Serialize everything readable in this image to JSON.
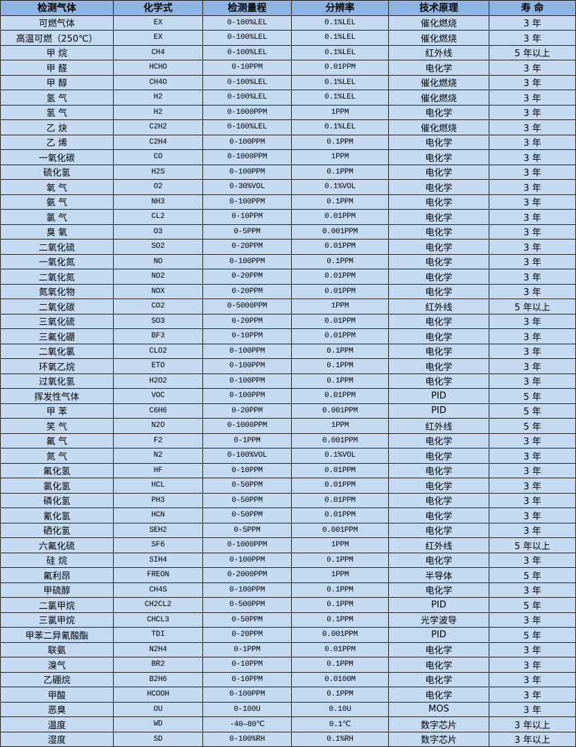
{
  "table": {
    "headers": [
      "检测气体",
      "化学式",
      "检测量程",
      "分辨率",
      "技术原理",
      "寿  命"
    ],
    "rows": [
      [
        "可燃气体",
        "EX",
        "0-100%LEL",
        "0.1%LEL",
        "催化燃烧",
        "3 年"
      ],
      [
        "高温可燃（250℃）",
        "EX",
        "0-100%LEL",
        "0.1%LEL",
        "催化燃烧",
        "3 年"
      ],
      [
        "甲  烷",
        "CH4",
        "0-100%LEL",
        "0.1%LEL",
        "红外线",
        "5 年以上"
      ],
      [
        "甲  醛",
        "HCHO",
        "0-10PPM",
        "0.01PPM",
        "电化学",
        "3 年"
      ],
      [
        "甲  醇",
        "CH4O",
        "0-100%LEL",
        "0.1%LEL",
        "催化燃烧",
        "3 年"
      ],
      [
        "氢  气",
        "H2",
        "0-100%LEL",
        "0.1%LEL",
        "催化燃烧",
        "3 年"
      ],
      [
        "氢  气",
        "H2",
        "0-1000PPM",
        "1PPM",
        "电化学",
        "3 年"
      ],
      [
        "乙  炔",
        "C2H2",
        "0-100%LEL",
        "0.1%LEL",
        "催化燃烧",
        "3 年"
      ],
      [
        "乙  烯",
        "C2H4",
        "0-100PPM",
        "0.1PPM",
        "电化学",
        "3 年"
      ],
      [
        "一氧化碳",
        "CO",
        "0-1000PPM",
        "1PPM",
        "电化学",
        "3 年"
      ],
      [
        "硫化氢",
        "H2S",
        "0-100PPM",
        "0.1PPM",
        "电化学",
        "3 年"
      ],
      [
        "氧  气",
        "O2",
        "0-30%VOL",
        "0.1%VOL",
        "电化学",
        "3 年"
      ],
      [
        "氨  气",
        "NH3",
        "0-100PPM",
        "0.1PPM",
        "电化学",
        "3 年"
      ],
      [
        "氯  气",
        "CL2",
        "0-10PPM",
        "0.01PPM",
        "电化学",
        "3 年"
      ],
      [
        "臭  氧",
        "O3",
        "0-5PPM",
        "0.001PPM",
        "电化学",
        "3 年"
      ],
      [
        "二氧化硫",
        "SO2",
        "0-20PPM",
        "0.01PPM",
        "电化学",
        "3 年"
      ],
      [
        "一氧化氮",
        "NO",
        "0-100PPM",
        "0.1PPM",
        "电化学",
        "3 年"
      ],
      [
        "二氧化氮",
        "NO2",
        "0-20PPM",
        "0.01PPM",
        "电化学",
        "3 年"
      ],
      [
        "氮氧化物",
        "NOX",
        "0-20PPM",
        "0.01PPM",
        "电化学",
        "3 年"
      ],
      [
        "二氧化碳",
        "CO2",
        "0-5000PPM",
        "1PPM",
        "红外线",
        "5 年以上"
      ],
      [
        "三氧化硫",
        "SO3",
        "0-20PPM",
        "0.01PPM",
        "电化学",
        "3 年"
      ],
      [
        "三氟化硼",
        "BF3",
        "0-10PPM",
        "0.01PPM",
        "电化学",
        "3 年"
      ],
      [
        "二氧化氯",
        "CLO2",
        "0-100PPM",
        "0.1PPM",
        "电化学",
        "3 年"
      ],
      [
        "环氧乙烷",
        "ETO",
        "0-100PPM",
        "0.1PPM",
        "电化学",
        "3 年"
      ],
      [
        "过氧化氢",
        "H2O2",
        "0-100PPM",
        "0.1PPM",
        "电化学",
        "3 年"
      ],
      [
        "挥发性气体",
        "VOC",
        "0-100PPM",
        "0.01PPM",
        "PID",
        "5 年"
      ],
      [
        "甲  苯",
        "C6H6",
        "0-20PPM",
        "0.001PPM",
        "PID",
        "5 年"
      ],
      [
        "笑  气",
        "N2O",
        "0-1000PPM",
        "1PPM",
        "红外线",
        "5 年"
      ],
      [
        "氟  气",
        "F2",
        "0-1PPM",
        "0.001PPM",
        "电化学",
        "3 年"
      ],
      [
        "氮  气",
        "N2",
        "0-100%VOL",
        "0.1%VOL",
        "电化学",
        "3 年"
      ],
      [
        "氟化氢",
        "HF",
        "0-10PPM",
        "0.01PPM",
        "电化学",
        "3 年"
      ],
      [
        "氯化氢",
        "HCL",
        "0-50PPM",
        "0.01PPM",
        "电化学",
        "3 年"
      ],
      [
        "磷化氢",
        "PH3",
        "0-50PPM",
        "0.01PPM",
        "电化学",
        "3 年"
      ],
      [
        "氰化氢",
        "HCN",
        "0-50PPM",
        "0.01PPM",
        "电化学",
        "3 年"
      ],
      [
        "硒化氢",
        "SEH2",
        "0-5PPM",
        "0.001PPM",
        "电化学",
        "3 年"
      ],
      [
        "六氟化硫",
        "SF6",
        "0-1000PPM",
        "1PPM",
        "红外线",
        "5 年以上"
      ],
      [
        "硅  烷",
        "SIH4",
        "0-100PPM",
        "0.1PPM",
        "电化学",
        "3 年"
      ],
      [
        "氟利昂",
        "FREON",
        "0-2000PPM",
        "1PPM",
        "半导体",
        "5 年"
      ],
      [
        "甲硫醇",
        "CH4S",
        "0-100PPM",
        "0.1PPM",
        "电化学",
        "3 年"
      ],
      [
        "二氯甲烷",
        "CH2CL2",
        "0-500PPM",
        "0.1PPM",
        "PID",
        "5 年"
      ],
      [
        "三氯甲烷",
        "CHCL3",
        "0-50PPM",
        "0.1PPM",
        "光学波导",
        "3 年"
      ],
      [
        "甲苯二异氰酸酯",
        "TDI",
        "0-20PPM",
        "0.001PPM",
        "PID",
        "5 年"
      ],
      [
        "联氨",
        "N2H4",
        "0-1PPM",
        "0.01PPM",
        "电化学",
        "3 年"
      ],
      [
        "溴气",
        "BR2",
        "0-10PPM",
        "0.1PPM",
        "电化学",
        "3 年"
      ],
      [
        "乙硼烷",
        "B2H6",
        "0-10PPM",
        "0.0100M",
        "电化学",
        "3 年"
      ],
      [
        "甲酸",
        "HCOOH",
        "0-100PPM",
        "0.1PPM",
        "电化学",
        "3 年"
      ],
      [
        "恶臭",
        "OU",
        "0-100U",
        "0.10U",
        "MOS",
        "3 年"
      ],
      [
        "温度",
        "WD",
        "-40—80℃",
        "0.1℃",
        "数字芯片",
        "3 年以上"
      ],
      [
        "湿度",
        "SD",
        "0-100%RH",
        "0.1%RH",
        "数字芯片",
        "3 年以上"
      ]
    ]
  },
  "colors": {
    "header_bg": "#8db4e2",
    "cell_bg": "#c5d9f1",
    "border": "#1f1f1f"
  }
}
